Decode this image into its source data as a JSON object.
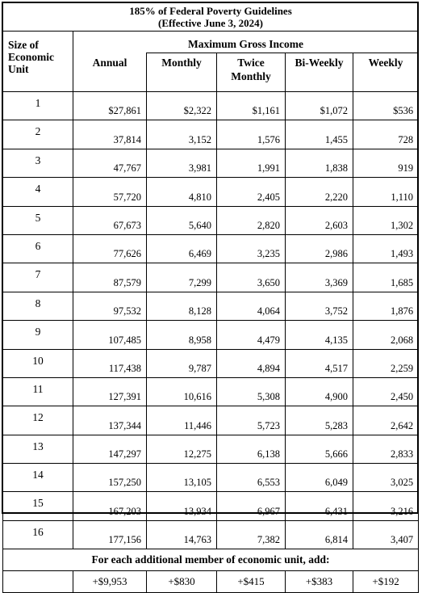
{
  "title_line1": "185% of Federal Poverty Guidelines",
  "title_line2": "(Effective June 3, 2024)",
  "size_header_lines": [
    "Size of",
    "Economic",
    "Unit"
  ],
  "max_header": "Maximum Gross Income",
  "columns": {
    "annual": "Annual",
    "monthly": "Monthly",
    "twice_monthly_1": "Twice",
    "twice_monthly_2": "Monthly",
    "biweekly": "Bi-Weekly",
    "weekly": "Weekly"
  },
  "rows": [
    {
      "size": "1",
      "annual": "$27,861",
      "monthly": "$2,322",
      "twice": "$1,161",
      "biweekly": "$1,072",
      "weekly": "$536"
    },
    {
      "size": "2",
      "annual": "37,814",
      "monthly": "3,152",
      "twice": "1,576",
      "biweekly": "1,455",
      "weekly": "728"
    },
    {
      "size": "3",
      "annual": "47,767",
      "monthly": "3,981",
      "twice": "1,991",
      "biweekly": "1,838",
      "weekly": "919"
    },
    {
      "size": "4",
      "annual": "57,720",
      "monthly": "4,810",
      "twice": "2,405",
      "biweekly": "2,220",
      "weekly": "1,110"
    },
    {
      "size": "5",
      "annual": "67,673",
      "monthly": "5,640",
      "twice": "2,820",
      "biweekly": "2,603",
      "weekly": "1,302"
    },
    {
      "size": "6",
      "annual": "77,626",
      "monthly": "6,469",
      "twice": "3,235",
      "biweekly": "2,986",
      "weekly": "1,493"
    },
    {
      "size": "7",
      "annual": "87,579",
      "monthly": "7,299",
      "twice": "3,650",
      "biweekly": "3,369",
      "weekly": "1,685"
    },
    {
      "size": "8",
      "annual": "97,532",
      "monthly": "8,128",
      "twice": "4,064",
      "biweekly": "3,752",
      "weekly": "1,876"
    },
    {
      "size": "9",
      "annual": "107,485",
      "monthly": "8,958",
      "twice": "4,479",
      "biweekly": "4,135",
      "weekly": "2,068"
    },
    {
      "size": "10",
      "annual": "117,438",
      "monthly": "9,787",
      "twice": "4,894",
      "biweekly": "4,517",
      "weekly": "2,259"
    },
    {
      "size": "11",
      "annual": "127,391",
      "monthly": "10,616",
      "twice": "5,308",
      "biweekly": "4,900",
      "weekly": "2,450"
    },
    {
      "size": "12",
      "annual": "137,344",
      "monthly": "11,446",
      "twice": "5,723",
      "biweekly": "5,283",
      "weekly": "2,642"
    },
    {
      "size": "13",
      "annual": "147,297",
      "monthly": "12,275",
      "twice": "6,138",
      "biweekly": "5,666",
      "weekly": "2,833"
    },
    {
      "size": "14",
      "annual": "157,250",
      "monthly": "13,105",
      "twice": "6,553",
      "biweekly": "6,049",
      "weekly": "3,025"
    },
    {
      "size": "15",
      "annual": "167,203",
      "monthly": "13,934",
      "twice": "6,967",
      "biweekly": "6,431",
      "weekly": "3,216"
    },
    {
      "size": "16",
      "annual": "177,156",
      "monthly": "14,763",
      "twice": "7,382",
      "biweekly": "6,814",
      "weekly": "3,407"
    }
  ],
  "additional_label": "For each additional member of economic unit, add:",
  "additional": {
    "annual": "+$9,953",
    "monthly": "+$830",
    "twice": "+$415",
    "biweekly": "+$383",
    "weekly": "+$192"
  }
}
